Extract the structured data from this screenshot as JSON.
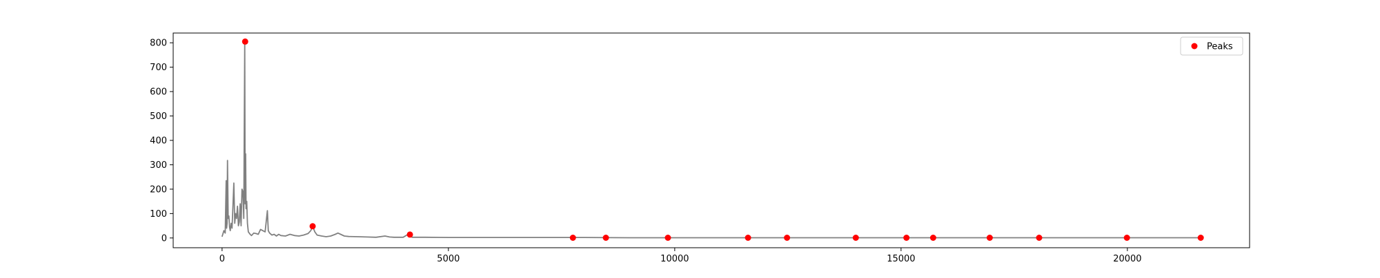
{
  "chart_data": {
    "type": "line",
    "title": "",
    "xlabel": "",
    "ylabel": "",
    "xlim": [
      -1080,
      22700
    ],
    "ylim": [
      -40,
      840
    ],
    "x_ticks": [
      0,
      5000,
      10000,
      15000,
      20000
    ],
    "y_ticks": [
      0,
      100,
      200,
      300,
      400,
      500,
      600,
      700,
      800
    ],
    "grid": false,
    "legend": {
      "position": "top-right",
      "entries": [
        {
          "label": "Peaks",
          "marker": "dot",
          "color": "#ff0000"
        }
      ]
    },
    "series": [
      {
        "color": "#808080",
        "x": [
          0,
          40,
          70,
          90,
          100,
          110,
          120,
          135,
          150,
          165,
          180,
          200,
          220,
          240,
          260,
          280,
          300,
          320,
          340,
          360,
          380,
          400,
          420,
          440,
          460,
          480,
          500,
          510,
          520,
          530,
          545,
          560,
          580,
          600,
          620,
          650,
          700,
          750,
          800,
          850,
          900,
          950,
          1000,
          1020,
          1050,
          1100,
          1150,
          1200,
          1250,
          1300,
          1400,
          1500,
          1600,
          1700,
          1800,
          1900,
          1960,
          2000,
          2050,
          2100,
          2200,
          2300,
          2400,
          2500,
          2560,
          2620,
          2700,
          2800,
          3000,
          3200,
          3400,
          3600,
          3700,
          3800,
          4000,
          4100,
          4200,
          4500,
          5000,
          5500,
          6000,
          7000,
          8000,
          9000,
          10000,
          11000,
          12000,
          13000,
          14000,
          15000,
          16000,
          17000,
          18000,
          19000,
          20000,
          21000,
          21640
        ],
        "y": [
          5,
          30,
          20,
          235,
          40,
          60,
          318,
          80,
          90,
          45,
          30,
          60,
          40,
          130,
          225,
          60,
          100,
          80,
          130,
          50,
          65,
          140,
          50,
          200,
          190,
          80,
          805,
          140,
          345,
          120,
          150,
          60,
          25,
          20,
          15,
          10,
          20,
          18,
          15,
          35,
          30,
          25,
          112,
          30,
          20,
          12,
          15,
          8,
          15,
          10,
          8,
          15,
          10,
          8,
          12,
          18,
          30,
          48,
          25,
          12,
          8,
          5,
          8,
          15,
          20,
          15,
          8,
          6,
          5,
          4,
          3,
          8,
          4,
          3,
          3,
          14,
          3,
          3,
          2,
          2,
          2,
          2,
          2,
          1,
          1,
          1,
          1,
          1,
          1,
          1,
          1,
          1,
          1,
          1,
          1,
          1,
          1
        ]
      },
      {
        "name": "Peaks",
        "marker": "dot",
        "color": "#ff0000",
        "x": [
          510,
          2000,
          4150,
          7750,
          8480,
          9850,
          11620,
          12480,
          14000,
          15120,
          15710,
          16960,
          18050,
          19990,
          21620
        ],
        "y": [
          805,
          48,
          14,
          1,
          1,
          1,
          1,
          1,
          1,
          1,
          1,
          1,
          1,
          1,
          1
        ]
      }
    ]
  }
}
